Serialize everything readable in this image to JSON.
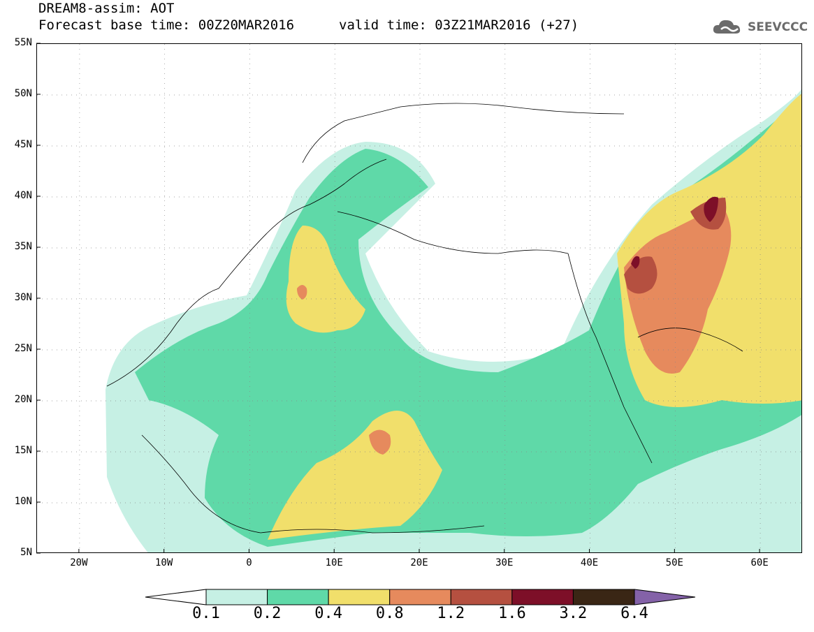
{
  "header": {
    "title_line1": "DREAM8-assim: AOT",
    "title_line2": "Forecast base time: 00Z20MAR2016",
    "title_line2b": "valid time: 03Z21MAR2016 (+27)",
    "logo_text": "SEEVCCC",
    "logo_icon": "cloud-icon"
  },
  "map": {
    "projection": "lat-lon",
    "lon_range": [
      -25,
      65
    ],
    "lat_range": [
      5,
      55
    ],
    "lat_labels": [
      "55N",
      "50N",
      "45N",
      "40N",
      "35N",
      "30N",
      "25N",
      "20N",
      "15N",
      "10N",
      "5N"
    ],
    "lon_labels": [
      "20W",
      "10W",
      "0",
      "10E",
      "20E",
      "30E",
      "40E",
      "50E",
      "60E"
    ]
  },
  "colorbar": {
    "labels": [
      "0.1",
      "0.2",
      "0.4",
      "0.8",
      "1.2",
      "1.6",
      "3.2",
      "6.4"
    ],
    "colors": [
      "#c6f0e4",
      "#5fd9a8",
      "#f1df6b",
      "#e68a5d",
      "#b55040",
      "#7d0f28",
      "#3a2615",
      "#8462a8"
    ],
    "under_color": "#ffffff",
    "over_color": "#8462a8"
  },
  "colors": {
    "c1": "#c6f0e4",
    "c2": "#5fd9a8",
    "c3": "#f1df6b",
    "c4": "#e68a5d",
    "c5": "#b55040",
    "c6": "#7d0f28"
  }
}
